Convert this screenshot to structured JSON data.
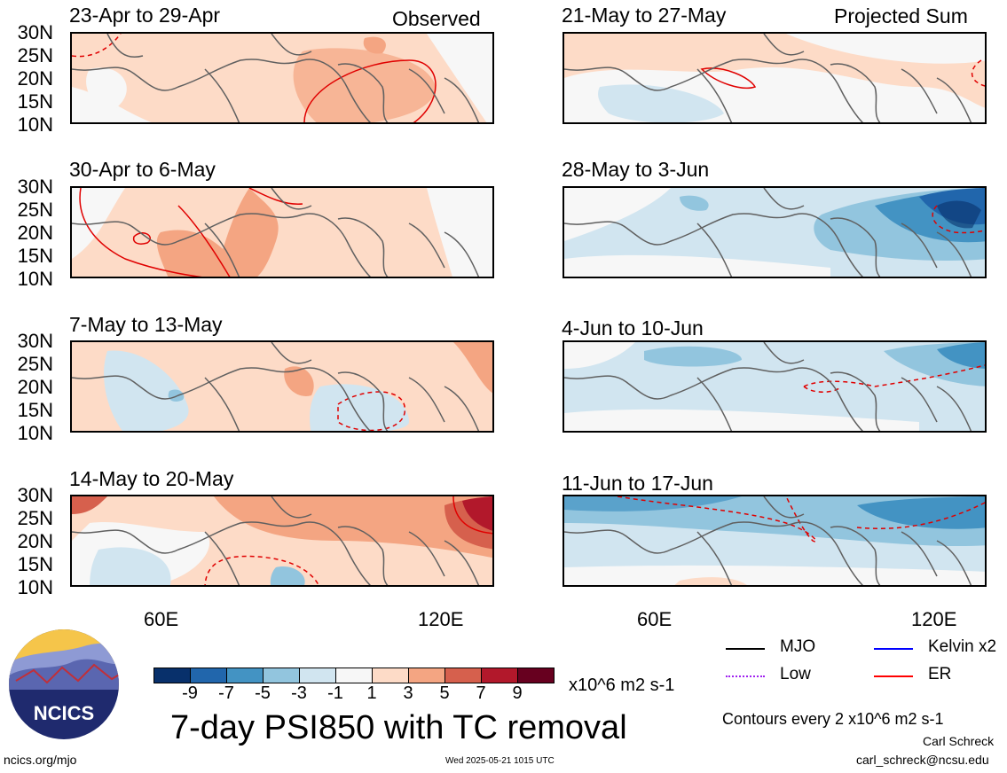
{
  "header": {
    "observed_label": "Observed",
    "projected_label": "Projected Sum"
  },
  "panels_left": [
    {
      "title": "23-Apr to 29-Apr"
    },
    {
      "title": "30-Apr to 6-May"
    },
    {
      "title": "7-May to 13-May"
    },
    {
      "title": "14-May to 20-May"
    }
  ],
  "panels_right": [
    {
      "title": "21-May to 27-May"
    },
    {
      "title": "28-May to 3-Jun"
    },
    {
      "title": "4-Jun to 10-Jun"
    },
    {
      "title": "11-Jun to 17-Jun"
    }
  ],
  "lat_labels": [
    "30N",
    "25N",
    "20N",
    "15N",
    "10N"
  ],
  "lon_labels": [
    "60E",
    "120E"
  ],
  "colorbar": {
    "colors": [
      "#08306b",
      "#2166ac",
      "#4393c3",
      "#92c5de",
      "#d1e5f0",
      "#f7f7f7",
      "#fddbc7",
      "#f4a582",
      "#d6604d",
      "#b2182b",
      "#67001f"
    ],
    "ticks": [
      "-9",
      "-7",
      "-5",
      "-3",
      "-1",
      "1",
      "3",
      "5",
      "7",
      "9"
    ],
    "units": "x10^6 m2 s-1"
  },
  "title": "7-day PSI850 with TC removal",
  "legend": {
    "items": [
      {
        "label": "MJO",
        "color": "#000000"
      },
      {
        "label": "Kelvin x2",
        "color": "#0000ff"
      },
      {
        "label": "Low",
        "color": "#a020f0"
      },
      {
        "label": "ER",
        "color": "#ff0000"
      }
    ],
    "contours_note": "Contours every 2 x10^6 m2 s-1"
  },
  "logo_text": "NCICS",
  "footer": {
    "url": "ncics.org/mjo",
    "timestamp": "Wed 2025-05-21 1015 UTC",
    "author": "Carl Schreck",
    "email": "carl_schreck@ncsu.edu"
  }
}
